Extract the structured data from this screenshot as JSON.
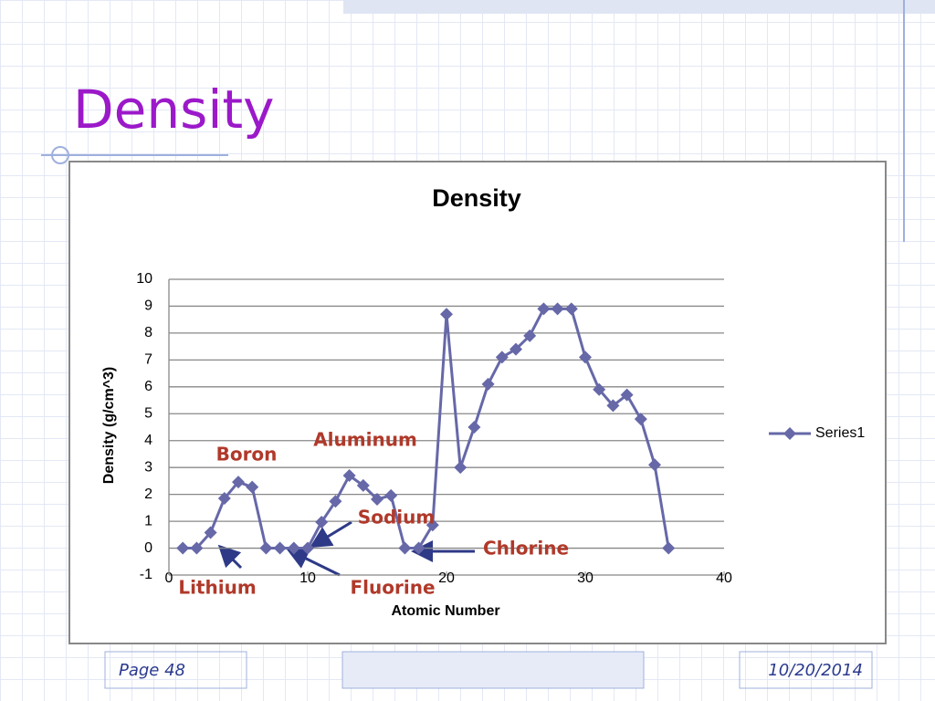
{
  "slide": {
    "title": "Density",
    "page": "Page 48",
    "date": "10/20/2014"
  },
  "chart_data": {
    "type": "line",
    "title": "Density",
    "x_label": "Atomic Number",
    "y_label": "Density (g/cm^3)",
    "x": [
      1,
      2,
      3,
      4,
      5,
      6,
      7,
      8,
      9,
      10,
      11,
      12,
      13,
      14,
      15,
      16,
      17,
      18,
      19,
      20,
      21,
      22,
      23,
      24,
      25,
      26,
      27,
      28,
      29,
      30,
      31,
      32,
      33,
      34,
      35,
      36
    ],
    "series": [
      {
        "name": "Series1",
        "color": "#6668a8",
        "values": [
          0,
          0,
          0.58,
          1.85,
          2.46,
          2.27,
          0,
          0,
          0,
          0,
          0.97,
          1.74,
          2.7,
          2.33,
          1.82,
          1.96,
          0,
          0,
          0.86,
          8.7,
          3.0,
          4.5,
          6.1,
          7.1,
          7.4,
          7.9,
          8.9,
          8.9,
          8.9,
          7.1,
          5.9,
          5.3,
          5.7,
          4.8,
          3.1,
          0
        ]
      }
    ],
    "xlim": [
      0,
      40
    ],
    "xticks": [
      0,
      10,
      20,
      30,
      40
    ],
    "ylim": [
      -1,
      10
    ],
    "yticks": [
      -1,
      0,
      1,
      2,
      3,
      4,
      5,
      6,
      7,
      8,
      9,
      10
    ],
    "grid": true,
    "legend": "right",
    "annotations": [
      "Boron",
      "Aluminum",
      "Sodium",
      "Chlorine",
      "Lithium",
      "Fluorine"
    ]
  }
}
